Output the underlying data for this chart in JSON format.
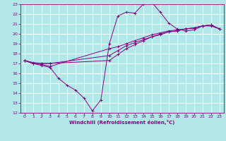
{
  "xlabel": "Windchill (Refroidissement éolien,°C)",
  "ylabel": "",
  "background_color": "#b2e8e8",
  "grid_color": "#ffffff",
  "line_color": "#880088",
  "xlim": [
    -0.5,
    23.5
  ],
  "ylim": [
    12,
    23
  ],
  "xticks": [
    0,
    1,
    2,
    3,
    4,
    5,
    6,
    7,
    8,
    9,
    10,
    11,
    12,
    13,
    14,
    15,
    16,
    17,
    18,
    19,
    20,
    21,
    22,
    23
  ],
  "yticks": [
    12,
    13,
    14,
    15,
    16,
    17,
    18,
    19,
    20,
    21,
    22,
    23
  ],
  "line1_x": [
    0,
    1,
    2,
    3,
    4,
    5,
    6,
    7,
    8,
    9,
    10,
    11,
    12,
    13,
    14,
    15,
    16,
    17,
    18,
    19,
    20,
    21,
    22,
    23
  ],
  "line1_y": [
    17.3,
    17.0,
    16.8,
    16.6,
    15.5,
    14.8,
    14.3,
    13.5,
    12.2,
    13.3,
    19.0,
    21.8,
    22.2,
    22.1,
    23.0,
    23.2,
    22.2,
    21.1,
    20.5,
    20.3,
    20.4,
    20.8,
    20.8,
    20.5
  ],
  "line2_x": [
    0,
    1,
    2,
    3,
    10,
    11,
    12,
    13,
    14,
    15,
    16,
    17,
    18,
    19,
    20,
    21,
    22,
    23
  ],
  "line2_y": [
    17.3,
    17.0,
    16.9,
    16.7,
    18.5,
    18.7,
    19.0,
    19.3,
    19.6,
    19.9,
    20.1,
    20.3,
    20.4,
    20.5,
    20.6,
    20.8,
    20.9,
    20.5
  ],
  "line3_x": [
    0,
    1,
    2,
    3,
    10,
    11,
    12,
    13,
    14,
    15,
    16,
    17,
    18,
    19,
    20,
    21,
    22,
    23
  ],
  "line3_y": [
    17.3,
    17.0,
    17.0,
    17.0,
    17.8,
    18.3,
    18.8,
    19.1,
    19.4,
    19.7,
    20.0,
    20.2,
    20.3,
    20.5,
    20.6,
    20.8,
    20.9,
    20.5
  ],
  "line4_x": [
    0,
    1,
    2,
    3,
    10,
    11,
    12,
    13,
    14,
    15,
    16,
    17,
    18,
    19,
    20,
    21,
    22,
    23
  ],
  "line4_y": [
    17.3,
    17.1,
    17.0,
    17.0,
    17.3,
    17.9,
    18.5,
    18.9,
    19.3,
    19.7,
    19.9,
    20.2,
    20.3,
    20.5,
    20.6,
    20.8,
    20.9,
    20.5
  ]
}
